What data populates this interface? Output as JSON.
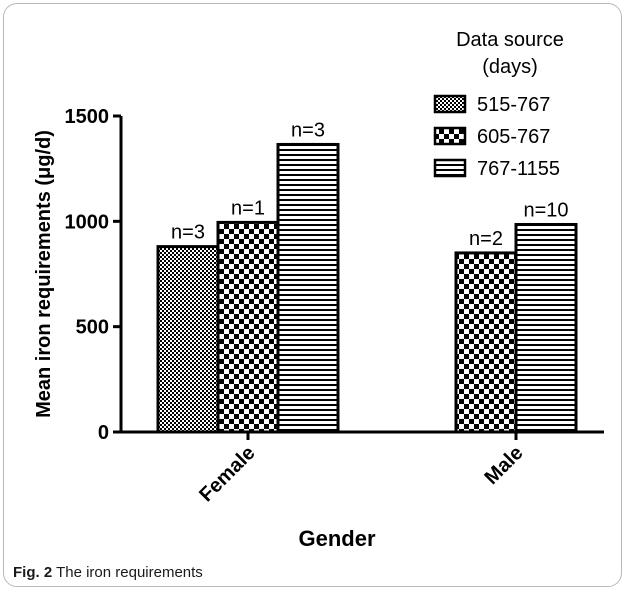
{
  "caption": {
    "label": "Fig. 2",
    "text": "The iron requirements"
  },
  "chart_data": {
    "type": "bar",
    "xlabel": "Gender",
    "ylabel": "Mean iron requirements (μg/d)",
    "ylim": [
      0,
      1500
    ],
    "yticks": [
      0,
      500,
      1000,
      1500
    ],
    "categories": [
      "Female",
      "Male"
    ],
    "legend_title": "Data source (days)",
    "legend_title_lines": [
      "Data source",
      "(days)"
    ],
    "legend_position": "top-right",
    "grid": false,
    "series": [
      {
        "name": "515-767",
        "pattern": "fine-check",
        "values": [
          880,
          null
        ],
        "labels": [
          "n=3",
          null
        ]
      },
      {
        "name": "605-767",
        "pattern": "checker",
        "values": [
          995,
          850
        ],
        "labels": [
          "n=1",
          "n=2"
        ]
      },
      {
        "name": "767-1155",
        "pattern": "hstripes",
        "values": [
          1365,
          985
        ],
        "labels": [
          "n=3",
          "n=10"
        ]
      }
    ],
    "colors": {
      "ink": "#000000",
      "background": "#ffffff"
    }
  }
}
